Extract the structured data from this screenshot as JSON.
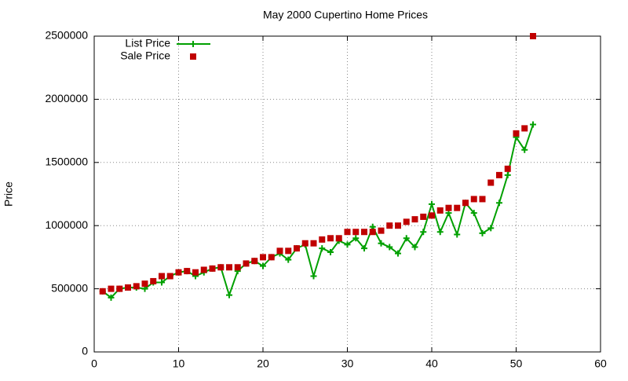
{
  "chart_data": {
    "type": "line",
    "title": "May 2000 Cupertino Home Prices",
    "y_label": "Price",
    "x": [
      1,
      2,
      3,
      4,
      5,
      6,
      7,
      8,
      9,
      10,
      11,
      12,
      13,
      14,
      15,
      16,
      17,
      18,
      19,
      20,
      21,
      22,
      23,
      24,
      25,
      26,
      27,
      28,
      29,
      30,
      31,
      32,
      33,
      34,
      35,
      36,
      37,
      38,
      39,
      40,
      41,
      42,
      43,
      44,
      45,
      46,
      47,
      48,
      49,
      50,
      51,
      52
    ],
    "series": [
      {
        "name": "List Price",
        "color": "#00a000",
        "style": "linespoints",
        "values": [
          480000,
          430000,
          500000,
          510000,
          510000,
          500000,
          550000,
          550000,
          600000,
          630000,
          640000,
          600000,
          630000,
          660000,
          670000,
          450000,
          640000,
          700000,
          720000,
          680000,
          750000,
          780000,
          730000,
          820000,
          850000,
          600000,
          820000,
          790000,
          880000,
          850000,
          900000,
          820000,
          990000,
          860000,
          830000,
          780000,
          900000,
          830000,
          950000,
          1170000,
          950000,
          1100000,
          930000,
          1180000,
          1100000,
          940000,
          980000,
          1180000,
          1400000,
          1700000,
          1600000,
          1800000
        ]
      },
      {
        "name": "Sale Price",
        "color": "#c00000",
        "style": "points",
        "values": [
          480000,
          500000,
          500000,
          510000,
          520000,
          540000,
          560000,
          600000,
          600000,
          630000,
          640000,
          630000,
          650000,
          660000,
          670000,
          670000,
          670000,
          700000,
          720000,
          750000,
          750000,
          800000,
          800000,
          820000,
          860000,
          860000,
          890000,
          900000,
          900000,
          950000,
          950000,
          950000,
          950000,
          960000,
          1000000,
          1000000,
          1030000,
          1050000,
          1070000,
          1080000,
          1120000,
          1140000,
          1140000,
          1180000,
          1210000,
          1210000,
          1340000,
          1400000,
          1450000,
          1730000,
          1770000,
          2500000
        ]
      }
    ],
    "xlim": [
      0,
      60
    ],
    "xticks": [
      0,
      10,
      20,
      30,
      40,
      50,
      60
    ],
    "ylim": [
      0,
      2500000
    ],
    "yticks": [
      0,
      500000,
      1000000,
      1500000,
      2000000,
      2500000
    ],
    "grid": true,
    "legend": "top-left"
  }
}
